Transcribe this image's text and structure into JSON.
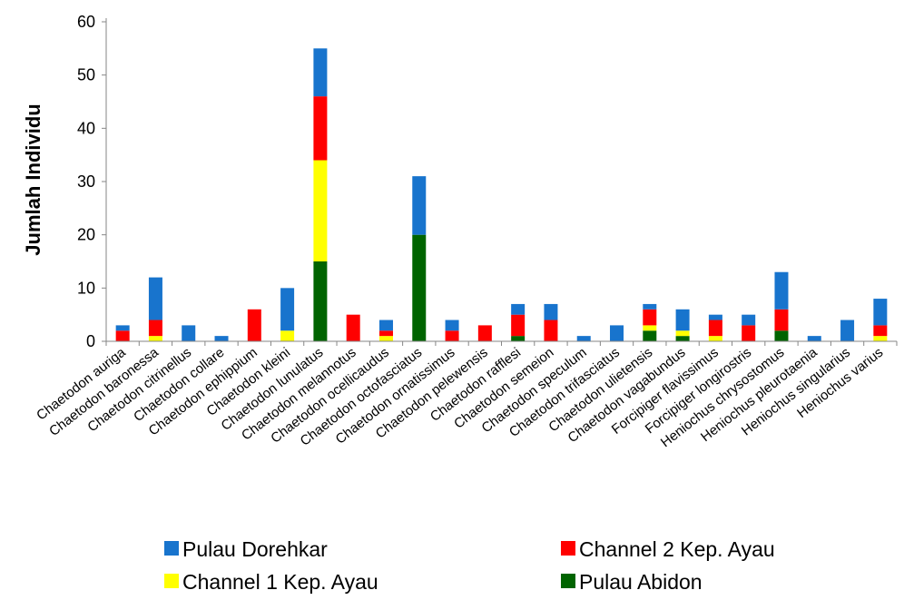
{
  "chart_data": {
    "type": "bar",
    "stacked": true,
    "title": "",
    "xlabel": "",
    "ylabel": "Jumlah Individu",
    "ylim": [
      0,
      60
    ],
    "yticks": [
      0,
      10,
      20,
      30,
      40,
      50,
      60
    ],
    "grid": false,
    "legend_position": "bottom",
    "categories": [
      "Chaetodon auriga",
      "Chaetodon baronessa",
      "Chaetodon citrinellus",
      "Chaetodon collare",
      "Chaetodon ephippium",
      "Chaetodon kleini",
      "Chaetodon lunulatus",
      "Chaetodon melannotus",
      "Chaetodon ocellicaudus",
      "Chaetodon octofasciatus",
      "Chaetodon ornatissimus",
      "Chaetodon pelewensis",
      "Chaetodon rafflesi",
      "Chaetodon semeion",
      "Chaetodon speculum",
      "Chaetodon trifasciatus",
      "Chaetodon ulietensis",
      "Chaetodon vagabundus",
      "Forcipiger flavissimus",
      "Forcipiger longirostris",
      "Heniochus chrysostomus",
      "Heniochus pleurotaenia",
      "Heniochus singularius",
      "Heniochus varius"
    ],
    "series": [
      {
        "name": "Pulau Abidon",
        "color": "#006400",
        "values": [
          0,
          0,
          0,
          0,
          0,
          0,
          15,
          0,
          0,
          20,
          0,
          0,
          1,
          0,
          0,
          0,
          2,
          1,
          0,
          0,
          2,
          0,
          0,
          0
        ]
      },
      {
        "name": "Channel 1 Kep. Ayau",
        "color": "#FFFF00",
        "values": [
          0,
          1,
          0,
          0,
          0,
          2,
          19,
          0,
          1,
          0,
          0,
          0,
          0,
          0,
          0,
          0,
          1,
          1,
          1,
          0,
          0,
          0,
          0,
          1
        ]
      },
      {
        "name": "Channel 2 Kep. Ayau",
        "color": "#FF0000",
        "values": [
          2,
          3,
          0,
          0,
          6,
          0,
          12,
          5,
          1,
          0,
          2,
          3,
          4,
          4,
          0,
          0,
          3,
          0,
          3,
          3,
          4,
          0,
          0,
          2
        ]
      },
      {
        "name": "Pulau Dorehkar",
        "color": "#1874CD",
        "values": [
          1,
          8,
          3,
          1,
          0,
          8,
          9,
          0,
          2,
          11,
          2,
          0,
          2,
          3,
          1,
          3,
          1,
          4,
          1,
          2,
          7,
          1,
          4,
          5
        ]
      }
    ],
    "legend_order": [
      "Pulau Dorehkar",
      "Channel 2 Kep. Ayau",
      "Channel 1 Kep. Ayau",
      "Pulau Abidon"
    ]
  }
}
